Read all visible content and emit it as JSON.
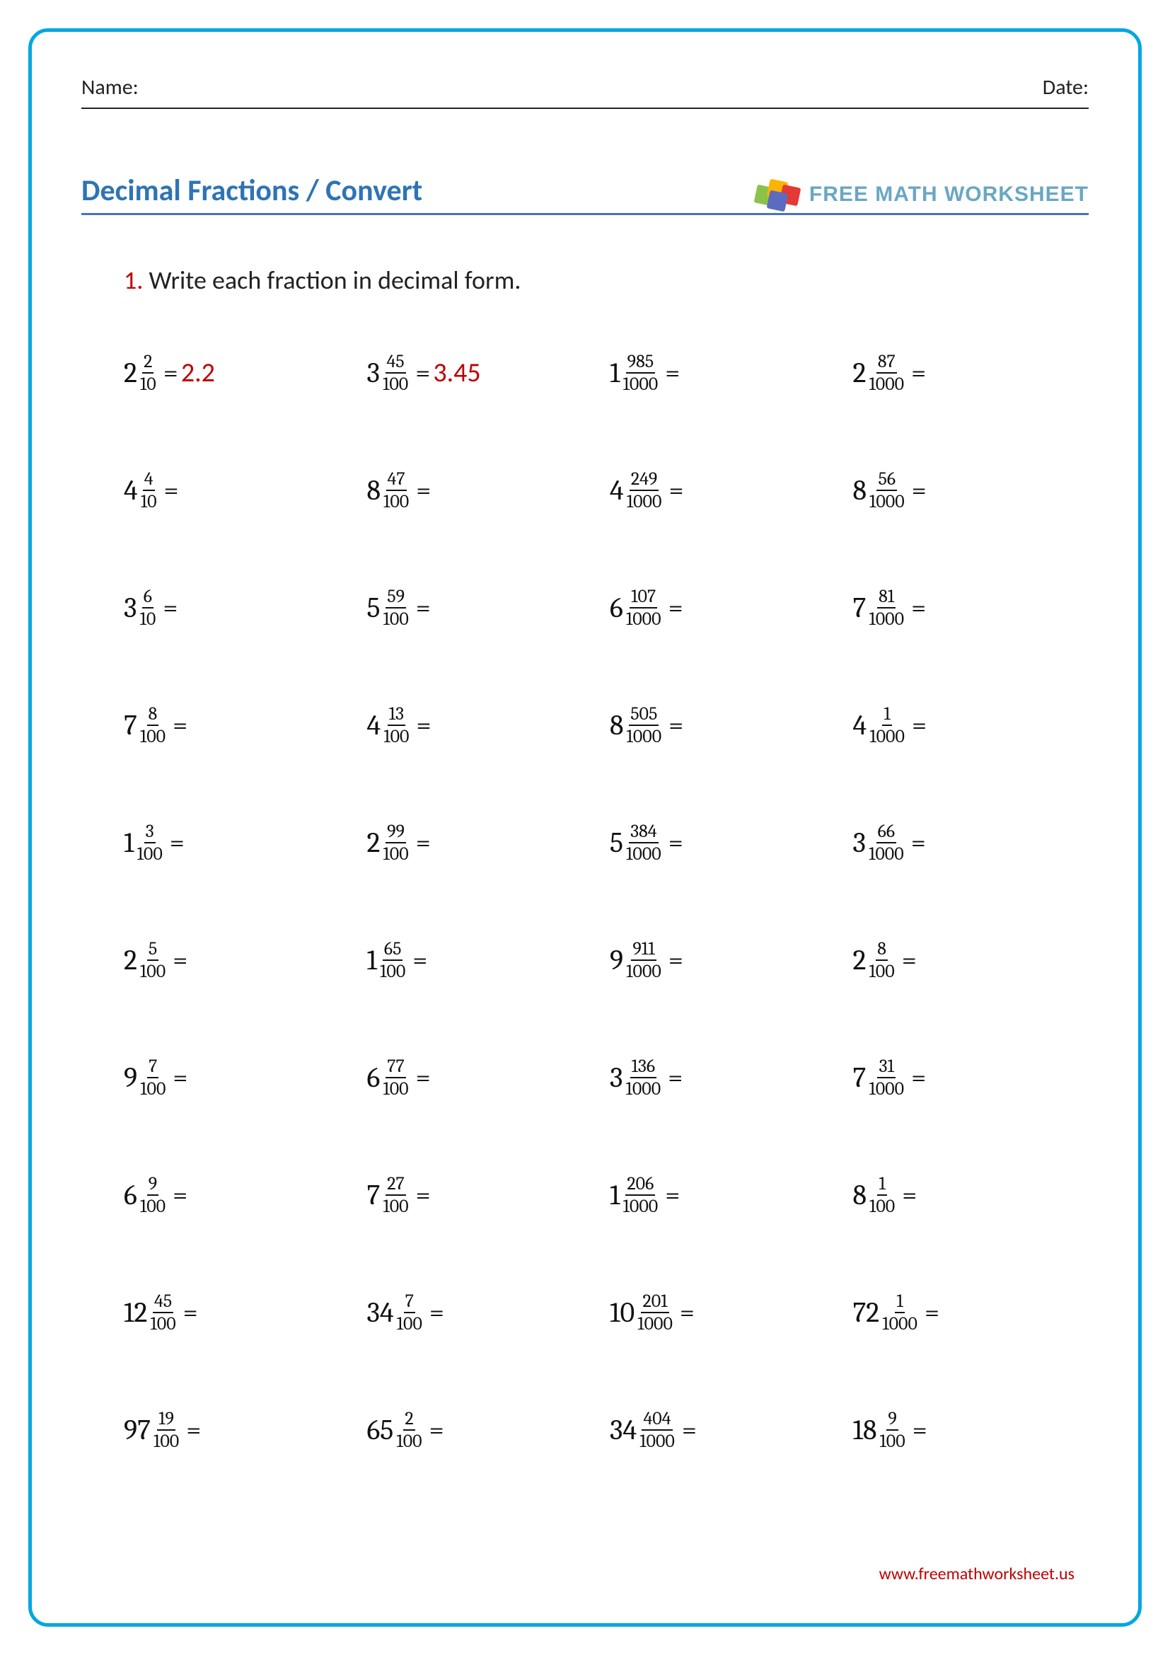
{
  "header": {
    "name_label": "Name:",
    "date_label": "Date:"
  },
  "title": "Decimal Fractions / Convert",
  "brand": {
    "text": "FREE MATH WORKSHEET",
    "cube_colors": [
      "#8bc34a",
      "#ffb300",
      "#e53935",
      "#5c6bc0"
    ]
  },
  "instruction": {
    "number": "1.",
    "text": "Write each fraction in decimal form."
  },
  "colors": {
    "border": "#00a7e0",
    "title": "#2e74b5",
    "title_underline": "#4472c4",
    "accent_red": "#c00000",
    "text": "#111111"
  },
  "footer_url": "www.freemathworksheet.us",
  "problems": [
    [
      {
        "whole": "2",
        "num": "2",
        "den": "10",
        "answer": "2.2"
      },
      {
        "whole": "3",
        "num": "45",
        "den": "100",
        "answer": "3.45"
      },
      {
        "whole": "1",
        "num": "985",
        "den": "1000",
        "answer": ""
      },
      {
        "whole": "2",
        "num": "87",
        "den": "1000",
        "answer": ""
      }
    ],
    [
      {
        "whole": "4",
        "num": "4",
        "den": "10",
        "answer": ""
      },
      {
        "whole": "8",
        "num": "47",
        "den": "100",
        "answer": ""
      },
      {
        "whole": "4",
        "num": "249",
        "den": "1000",
        "answer": ""
      },
      {
        "whole": "8",
        "num": "56",
        "den": "1000",
        "answer": ""
      }
    ],
    [
      {
        "whole": "3",
        "num": "6",
        "den": "10",
        "answer": ""
      },
      {
        "whole": "5",
        "num": "59",
        "den": "100",
        "answer": ""
      },
      {
        "whole": "6",
        "num": "107",
        "den": "1000",
        "answer": ""
      },
      {
        "whole": "7",
        "num": "81",
        "den": "1000",
        "answer": ""
      }
    ],
    [
      {
        "whole": "7",
        "num": "8",
        "den": "100",
        "answer": ""
      },
      {
        "whole": "4",
        "num": "13",
        "den": "100",
        "answer": ""
      },
      {
        "whole": "8",
        "num": "505",
        "den": "1000",
        "answer": ""
      },
      {
        "whole": "4",
        "num": "1",
        "den": "1000",
        "answer": ""
      }
    ],
    [
      {
        "whole": "1",
        "num": "3",
        "den": "100",
        "answer": ""
      },
      {
        "whole": "2",
        "num": "99",
        "den": "100",
        "answer": ""
      },
      {
        "whole": "5",
        "num": "384",
        "den": "1000",
        "answer": ""
      },
      {
        "whole": "3",
        "num": "66",
        "den": "1000",
        "answer": ""
      }
    ],
    [
      {
        "whole": "2",
        "num": "5",
        "den": "100",
        "answer": ""
      },
      {
        "whole": "1",
        "num": "65",
        "den": "100",
        "answer": ""
      },
      {
        "whole": "9",
        "num": "911",
        "den": "1000",
        "answer": ""
      },
      {
        "whole": "2",
        "num": "8",
        "den": "100",
        "answer": ""
      }
    ],
    [
      {
        "whole": "9",
        "num": "7",
        "den": "100",
        "answer": ""
      },
      {
        "whole": "6",
        "num": "77",
        "den": "100",
        "answer": ""
      },
      {
        "whole": "3",
        "num": "136",
        "den": "1000",
        "answer": ""
      },
      {
        "whole": "7",
        "num": "31",
        "den": "1000",
        "answer": ""
      }
    ],
    [
      {
        "whole": "6",
        "num": "9",
        "den": "100",
        "answer": ""
      },
      {
        "whole": "7",
        "num": "27",
        "den": "100",
        "answer": ""
      },
      {
        "whole": "1",
        "num": "206",
        "den": "1000",
        "answer": ""
      },
      {
        "whole": "8",
        "num": "1",
        "den": "100",
        "answer": ""
      }
    ],
    [
      {
        "whole": "12",
        "num": "45",
        "den": "100",
        "answer": ""
      },
      {
        "whole": "34",
        "num": "7",
        "den": "100",
        "answer": ""
      },
      {
        "whole": "10",
        "num": "201",
        "den": "1000",
        "answer": ""
      },
      {
        "whole": "72",
        "num": "1",
        "den": "1000",
        "answer": ""
      }
    ],
    [
      {
        "whole": "97",
        "num": "19",
        "den": "100",
        "answer": ""
      },
      {
        "whole": "65",
        "num": "2",
        "den": "100",
        "answer": ""
      },
      {
        "whole": "34",
        "num": "404",
        "den": "1000",
        "answer": ""
      },
      {
        "whole": "18",
        "num": "9",
        "den": "100",
        "answer": ""
      }
    ]
  ]
}
